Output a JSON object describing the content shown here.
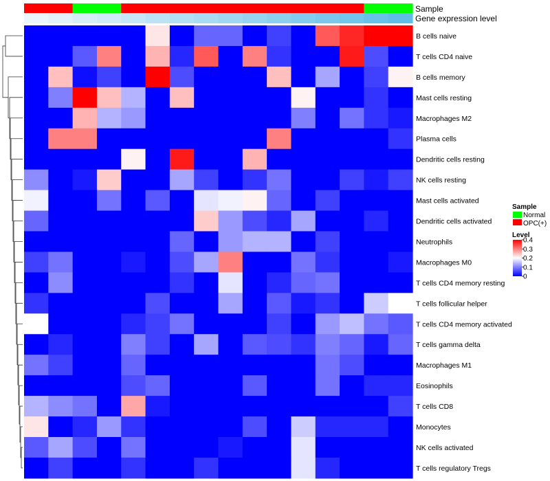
{
  "chart_data": {
    "type": "heatmap",
    "annotation_tracks": [
      "Sample",
      "Gene expression level"
    ],
    "sample_groups": [
      "OPC(+)",
      "OPC(+)",
      "Normal",
      "Normal",
      "OPC(+)",
      "OPC(+)",
      "OPC(+)",
      "OPC(+)",
      "OPC(+)",
      "OPC(+)",
      "OPC(+)",
      "OPC(+)",
      "OPC(+)",
      "OPC(+)",
      "Normal",
      "Normal"
    ],
    "gene_expression_level": [
      0.0,
      0.05,
      0.1,
      0.15,
      0.2,
      0.25,
      0.3,
      0.35,
      0.4,
      0.45,
      0.5,
      0.55,
      0.6,
      0.65,
      0.7,
      0.75
    ],
    "rows": [
      "B cells naive",
      "T cells CD4 naive",
      "B cells memory",
      "Mast cells resting",
      "Macrophages M2",
      "Plasma cells",
      "Dendritic cells resting",
      "NK cells resting",
      "Mast cells activated",
      "Dendritic cells activated",
      "Neutrophils",
      "Macrophages M0",
      "T cells CD4 memory resting",
      "T cells follicular helper",
      "T cells CD4 memory activated",
      "T cells gamma delta",
      "Macrophages M1",
      "Eosinophils",
      "T cells CD8",
      "Monocytes",
      "NK cells activated",
      "T cells regulatory  Tregs"
    ],
    "values": [
      [
        0,
        0,
        0,
        0,
        0,
        0.22,
        0,
        0.08,
        0.08,
        0,
        0.05,
        0,
        0.33,
        0.37,
        0.4,
        0.4
      ],
      [
        0,
        0,
        0.07,
        0.3,
        0,
        0.26,
        0.03,
        0.33,
        0,
        0.3,
        0.04,
        0,
        0,
        0.38,
        0.06,
        0
      ],
      [
        0,
        0.25,
        0.01,
        0.05,
        0,
        0.4,
        0.06,
        0,
        0,
        0,
        0.25,
        0,
        0.13,
        0,
        0.05,
        0.21
      ],
      [
        0,
        0.1,
        0.4,
        0.25,
        0.14,
        0,
        0.25,
        0,
        0,
        0,
        0,
        0.21,
        0,
        0,
        0.04,
        0
      ],
      [
        0,
        0,
        0.26,
        0.14,
        0.12,
        0,
        0,
        0,
        0,
        0,
        0,
        0.1,
        0,
        0.09,
        0.04,
        0.02
      ],
      [
        0,
        0.3,
        0.3,
        0,
        0,
        0,
        0,
        0,
        0,
        0,
        0.3,
        0,
        0,
        0,
        0,
        0.04
      ],
      [
        0,
        0,
        0,
        0,
        0.21,
        0,
        0.38,
        0,
        0,
        0.26,
        0,
        0,
        0,
        0,
        0,
        0
      ],
      [
        0.11,
        0,
        0.02,
        0.24,
        0,
        0,
        0.13,
        0.05,
        0,
        0.04,
        0.09,
        0,
        0,
        0.05,
        0.02,
        0.05
      ],
      [
        0.19,
        0,
        0,
        0.09,
        0,
        0.07,
        0,
        0.18,
        0.19,
        0.21,
        0.08,
        0,
        0.05,
        0,
        0,
        0
      ],
      [
        0.08,
        0,
        0,
        0,
        0,
        0,
        0,
        0.24,
        0.12,
        0.06,
        0.03,
        0.13,
        0,
        0,
        0.03,
        0
      ],
      [
        0,
        0,
        0,
        0,
        0,
        0,
        0.08,
        0,
        0.12,
        0.14,
        0.14,
        0,
        0.05,
        0,
        0,
        0
      ],
      [
        0.05,
        0.09,
        0,
        0,
        0.02,
        0,
        0.06,
        0.13,
        0.3,
        0,
        0,
        0.09,
        0.04,
        0,
        0,
        0.02
      ],
      [
        0,
        0.11,
        0,
        0,
        0,
        0,
        0.04,
        0,
        0.18,
        0,
        0.03,
        0.08,
        0.09,
        0,
        0,
        0
      ],
      [
        0.04,
        0,
        0,
        0,
        0,
        0.06,
        0,
        0,
        0.13,
        0,
        0.07,
        0.02,
        0.04,
        0,
        0.16,
        0.2
      ],
      [
        0.2,
        0,
        0,
        0,
        0.03,
        0.05,
        0.09,
        0,
        0,
        0,
        0.05,
        0,
        0.12,
        0.15,
        0.09,
        0.07
      ],
      [
        0,
        0.03,
        0,
        0,
        0.1,
        0.05,
        0,
        0.13,
        0,
        0.07,
        0.06,
        0.04,
        0.1,
        0.08,
        0.02,
        0.08
      ],
      [
        0.09,
        0.05,
        0,
        0,
        0.08,
        0,
        0,
        0,
        0,
        0,
        0,
        0,
        0.09,
        0.06,
        0,
        0
      ],
      [
        0,
        0,
        0,
        0,
        0.06,
        0.08,
        0,
        0,
        0,
        0.07,
        0,
        0,
        0.09,
        0,
        0.03,
        0.03
      ],
      [
        0.14,
        0.11,
        0.09,
        0,
        0.27,
        0.02,
        0,
        0,
        0,
        0,
        0,
        0,
        0,
        0,
        0,
        0.05
      ],
      [
        0.22,
        0,
        0.03,
        0.12,
        0.04,
        0,
        0,
        0,
        0,
        0.06,
        0,
        0.16,
        0.03,
        0.03,
        0.03,
        0
      ],
      [
        0.07,
        0.13,
        0.06,
        0,
        0.09,
        0,
        0,
        0,
        0.02,
        0,
        0,
        0.18,
        0,
        0,
        0,
        0
      ],
      [
        0,
        0.05,
        0,
        0,
        0.04,
        0,
        0,
        0.04,
        0,
        0,
        0,
        0.18,
        0.03,
        0,
        0,
        0
      ]
    ],
    "legend": {
      "sample_title": "Sample",
      "sample_entries": [
        {
          "label": "Normal",
          "color": "#00ff00"
        },
        {
          "label": "OPC(+)",
          "color": "#ff0000"
        }
      ],
      "level_title": "Level",
      "level_ticks": [
        "0.4",
        "0.3",
        "0.2",
        "0.1",
        "0"
      ],
      "level_tick_values": [
        0.4,
        0.3,
        0.2,
        0.1,
        0.0
      ]
    },
    "color_scale": {
      "low": "#0000ff",
      "mid": "#ffffff",
      "high": "#ff0000",
      "min": 0,
      "max": 0.4
    },
    "annotation_colors": {
      "low": "#eaf6fb",
      "high": "#5fbde8"
    }
  }
}
